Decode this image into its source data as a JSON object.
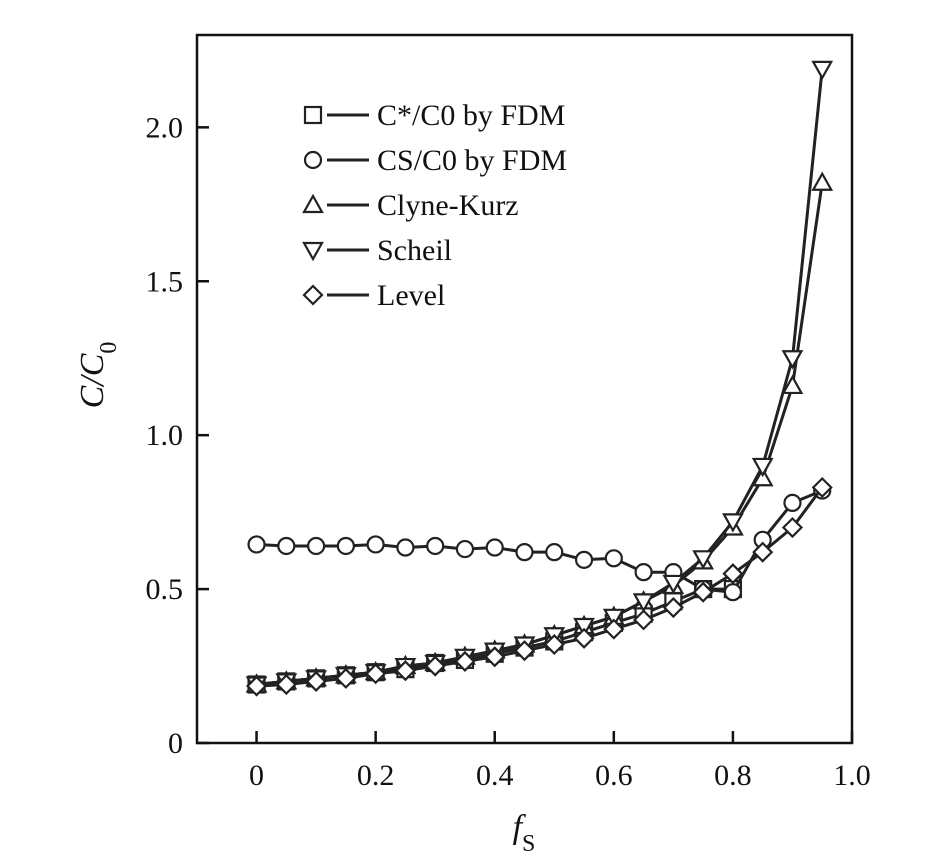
{
  "chart_data": {
    "type": "line",
    "title": "",
    "xlabel": "fS",
    "ylabel": "C/C0",
    "xlim": [
      -0.1,
      1.0
    ],
    "ylim": [
      0,
      2.3
    ],
    "x_ticks": [
      0,
      0.2,
      0.4,
      0.6,
      0.8,
      1.0
    ],
    "x_tick_labels": [
      "0",
      "0.2",
      "0.4",
      "0.6",
      "0.8",
      "1.0"
    ],
    "y_ticks": [
      0,
      0.5,
      1.0,
      1.5,
      2.0
    ],
    "y_tick_labels": [
      "0",
      "0.5",
      "1.0",
      "1.5",
      "2.0"
    ],
    "grid": false,
    "legend_position": "top-left",
    "series": [
      {
        "name": "C*/C0 by FDM",
        "marker": "square",
        "x": [
          0.0,
          0.05,
          0.1,
          0.15,
          0.2,
          0.25,
          0.3,
          0.35,
          0.4,
          0.45,
          0.5,
          0.55,
          0.6,
          0.65,
          0.7,
          0.75,
          0.8
        ],
        "y": [
          0.19,
          0.2,
          0.21,
          0.22,
          0.23,
          0.24,
          0.26,
          0.27,
          0.29,
          0.31,
          0.33,
          0.36,
          0.39,
          0.42,
          0.46,
          0.5,
          0.5
        ]
      },
      {
        "name": "CS/C0 by FDM",
        "marker": "circle",
        "x": [
          0.0,
          0.05,
          0.1,
          0.15,
          0.2,
          0.25,
          0.3,
          0.35,
          0.4,
          0.45,
          0.5,
          0.55,
          0.6,
          0.65,
          0.7,
          0.75,
          0.8,
          0.85,
          0.9,
          0.95
        ],
        "y": [
          0.645,
          0.64,
          0.64,
          0.64,
          0.645,
          0.635,
          0.64,
          0.63,
          0.635,
          0.62,
          0.62,
          0.595,
          0.6,
          0.555,
          0.555,
          0.5,
          0.49,
          0.66,
          0.78,
          0.82
        ]
      },
      {
        "name": "Clyne-Kurz",
        "marker": "triangle-up",
        "x": [
          0.0,
          0.05,
          0.1,
          0.15,
          0.2,
          0.25,
          0.3,
          0.35,
          0.4,
          0.45,
          0.5,
          0.55,
          0.6,
          0.65,
          0.7,
          0.75,
          0.8,
          0.85,
          0.9,
          0.95
        ],
        "y": [
          0.19,
          0.2,
          0.21,
          0.22,
          0.23,
          0.25,
          0.26,
          0.28,
          0.3,
          0.32,
          0.35,
          0.38,
          0.41,
          0.46,
          0.51,
          0.59,
          0.7,
          0.86,
          1.16,
          1.82
        ]
      },
      {
        "name": "Scheil",
        "marker": "triangle-down",
        "x": [
          0.0,
          0.05,
          0.1,
          0.15,
          0.2,
          0.25,
          0.3,
          0.35,
          0.4,
          0.45,
          0.5,
          0.55,
          0.6,
          0.65,
          0.7,
          0.75,
          0.8,
          0.85,
          0.9,
          0.95
        ],
        "y": [
          0.19,
          0.2,
          0.21,
          0.22,
          0.23,
          0.25,
          0.26,
          0.28,
          0.3,
          0.32,
          0.35,
          0.38,
          0.41,
          0.46,
          0.52,
          0.6,
          0.72,
          0.9,
          1.25,
          2.19
        ]
      },
      {
        "name": "Level",
        "marker": "diamond",
        "x": [
          0.0,
          0.05,
          0.1,
          0.15,
          0.2,
          0.25,
          0.3,
          0.35,
          0.4,
          0.45,
          0.5,
          0.55,
          0.6,
          0.65,
          0.7,
          0.75,
          0.8,
          0.85,
          0.9,
          0.95
        ],
        "y": [
          0.185,
          0.19,
          0.2,
          0.21,
          0.225,
          0.235,
          0.25,
          0.265,
          0.28,
          0.3,
          0.32,
          0.34,
          0.37,
          0.4,
          0.44,
          0.49,
          0.55,
          0.62,
          0.7,
          0.83
        ]
      }
    ]
  }
}
